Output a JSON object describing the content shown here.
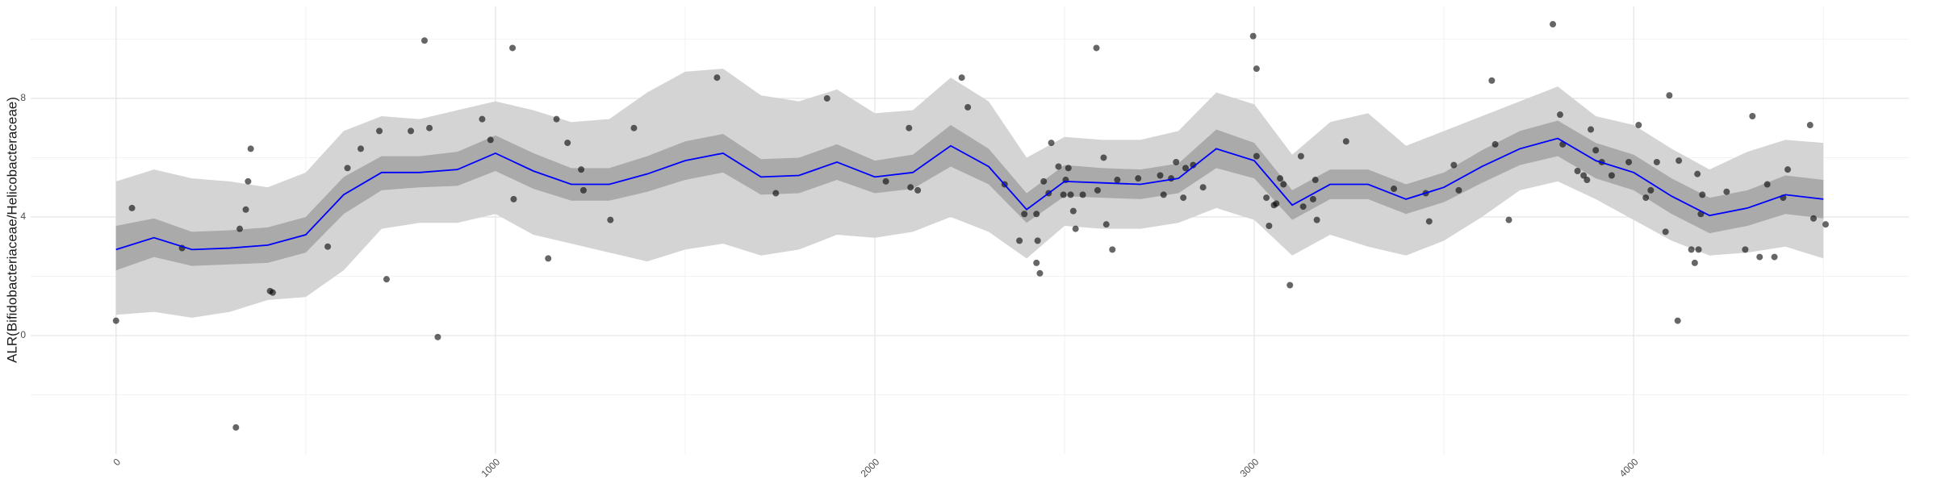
{
  "chart_data": {
    "type": "scatter",
    "y_label": "ALR(Bifidobacteriaceae/Helicobacteraceae)",
    "xlim": [
      -225,
      4725
    ],
    "ylim": [
      -4,
      11.1
    ],
    "xticks": [
      0,
      1000,
      2000,
      3000,
      4000
    ],
    "yticks": [
      0,
      4,
      8
    ],
    "minor_xticks": [
      500,
      1500,
      2500,
      3500,
      4500
    ],
    "minor_yticks": [
      -2,
      2,
      6,
      10
    ],
    "grid": true,
    "points": {
      "color": "#000000",
      "x": [
        0,
        42,
        174,
        326,
        342,
        348,
        355,
        406,
        413,
        316,
        558,
        610,
        645,
        694,
        713,
        777,
        813,
        826,
        848,
        965,
        987,
        1045,
        1048,
        1139,
        1161,
        1190,
        1226,
        1232,
        1303,
        1365,
        1584,
        1739,
        1874,
        2029,
        2090,
        2094,
        2113,
        2229,
        2245,
        2342,
        2381,
        2394,
        2426,
        2426,
        2435,
        2429,
        2445,
        2458,
        2465,
        2484,
        2497,
        2503,
        2510,
        2516,
        2523,
        2529,
        2548,
        2584,
        2587,
        2603,
        2610,
        2626,
        2639,
        2694,
        2752,
        2761,
        2781,
        2794,
        2813,
        2819,
        2839,
        2865,
        2997,
        3006,
        3006,
        3032,
        3039,
        3052,
        3058,
        3068,
        3077,
        3094,
        3123,
        3129,
        3155,
        3161,
        3165,
        3242,
        3368,
        3452,
        3461,
        3526,
        3539,
        3626,
        3635,
        3671,
        3787,
        3806,
        3813,
        3852,
        3868,
        3877,
        3887,
        3900,
        3916,
        3942,
        3987,
        4013,
        4032,
        4045,
        4061,
        4084,
        4094,
        4116,
        4119,
        4152,
        4161,
        4168,
        4171,
        4177,
        4181,
        4245,
        4294,
        4313,
        4332,
        4352,
        4371,
        4394,
        4406,
        4465,
        4474,
        4506
      ],
      "y": [
        0.5,
        4.3,
        2.95,
        3.6,
        4.25,
        5.2,
        6.3,
        1.5,
        1.45,
        -3.1,
        3.0,
        5.65,
        6.3,
        6.9,
        1.9,
        6.9,
        9.95,
        7.0,
        -0.05,
        7.3,
        6.6,
        9.7,
        4.6,
        2.6,
        7.3,
        6.5,
        5.6,
        4.9,
        3.9,
        7.0,
        8.7,
        4.8,
        8.0,
        5.2,
        7.0,
        5.0,
        4.9,
        8.7,
        7.7,
        5.1,
        3.2,
        4.1,
        4.1,
        2.45,
        2.1,
        3.2,
        5.2,
        4.8,
        6.5,
        5.7,
        4.75,
        5.25,
        5.65,
        4.75,
        4.2,
        3.6,
        4.75,
        9.7,
        4.9,
        6.0,
        3.75,
        2.9,
        5.25,
        5.3,
        5.4,
        4.75,
        5.3,
        5.85,
        4.65,
        5.65,
        5.75,
        5.0,
        10.1,
        9.0,
        6.05,
        4.65,
        3.7,
        4.4,
        4.45,
        5.3,
        5.1,
        1.7,
        6.05,
        4.35,
        4.6,
        5.25,
        3.9,
        6.55,
        4.95,
        4.8,
        3.85,
        5.75,
        4.9,
        8.6,
        6.45,
        3.9,
        10.5,
        7.45,
        6.45,
        5.55,
        5.4,
        5.25,
        6.95,
        6.25,
        5.85,
        5.4,
        5.85,
        7.1,
        4.65,
        4.9,
        5.85,
        3.5,
        8.1,
        0.5,
        5.9,
        2.9,
        2.45,
        5.45,
        2.9,
        4.1,
        4.75,
        4.85,
        2.9,
        7.4,
        2.65,
        5.1,
        2.65,
        4.65,
        5.6,
        7.1,
        3.95,
        3.75
      ]
    },
    "fit": {
      "color": "#0000ff",
      "x": [
        0,
        100,
        200,
        300,
        400,
        500,
        600,
        700,
        800,
        900,
        1000,
        1100,
        1200,
        1300,
        1400,
        1500,
        1600,
        1700,
        1800,
        1900,
        2000,
        2100,
        2200,
        2300,
        2400,
        2500,
        2600,
        2700,
        2800,
        2900,
        3000,
        3100,
        3200,
        3300,
        3400,
        3500,
        3600,
        3700,
        3800,
        3900,
        4000,
        4100,
        4200,
        4300,
        4400,
        4500
      ],
      "values": [
        2.9,
        3.3,
        2.9,
        2.95,
        3.05,
        3.4,
        4.75,
        5.5,
        5.5,
        5.6,
        6.15,
        5.55,
        5.1,
        5.1,
        5.45,
        5.9,
        6.15,
        5.35,
        5.4,
        5.85,
        5.35,
        5.5,
        6.4,
        5.7,
        4.25,
        5.2,
        5.15,
        5.1,
        5.3,
        6.3,
        5.9,
        4.4,
        5.1,
        5.1,
        4.6,
        5.0,
        5.7,
        6.3,
        6.65,
        5.9,
        5.5,
        4.7,
        4.05,
        4.3,
        4.75,
        4.6
      ]
    },
    "bands": [
      {
        "color": "#d4d4d4",
        "lower": [
          0.7,
          0.8,
          0.6,
          0.8,
          1.2,
          1.3,
          2.2,
          3.6,
          3.8,
          3.8,
          4.1,
          3.4,
          3.1,
          2.8,
          2.5,
          2.9,
          3.1,
          2.7,
          2.9,
          3.4,
          3.3,
          3.5,
          4.0,
          3.5,
          2.6,
          3.7,
          3.6,
          3.6,
          3.8,
          4.3,
          3.9,
          2.7,
          3.4,
          3.0,
          2.7,
          3.2,
          4.0,
          4.9,
          5.2,
          4.6,
          3.9,
          3.2,
          2.7,
          2.8,
          3.0,
          2.6
        ],
        "upper": [
          5.2,
          5.6,
          5.3,
          5.2,
          5.0,
          5.5,
          6.9,
          7.4,
          7.3,
          7.6,
          7.9,
          7.6,
          7.2,
          7.3,
          8.2,
          8.9,
          9.0,
          8.1,
          7.9,
          8.3,
          7.5,
          7.6,
          8.7,
          7.9,
          6.0,
          6.7,
          6.6,
          6.6,
          6.9,
          8.2,
          7.8,
          6.1,
          7.2,
          7.5,
          6.4,
          6.9,
          7.4,
          7.9,
          8.4,
          7.4,
          7.1,
          6.3,
          5.6,
          6.2,
          6.6,
          6.5
        ]
      },
      {
        "color": "#aaaaaa",
        "lower": [
          2.2,
          2.65,
          2.35,
          2.4,
          2.45,
          2.8,
          4.1,
          4.9,
          5.0,
          5.05,
          5.55,
          4.95,
          4.55,
          4.55,
          4.85,
          5.25,
          5.5,
          4.75,
          4.8,
          5.25,
          4.8,
          4.95,
          5.7,
          5.1,
          3.8,
          4.7,
          4.65,
          4.6,
          4.8,
          5.65,
          5.3,
          3.9,
          4.6,
          4.6,
          4.1,
          4.5,
          5.15,
          5.75,
          6.05,
          5.3,
          4.9,
          4.1,
          3.45,
          3.7,
          4.1,
          3.95
        ],
        "upper": [
          3.7,
          3.95,
          3.5,
          3.55,
          3.65,
          4.0,
          5.35,
          6.05,
          6.05,
          6.2,
          6.75,
          6.15,
          5.65,
          5.65,
          6.05,
          6.55,
          6.8,
          5.95,
          6.0,
          6.45,
          5.9,
          6.1,
          7.1,
          6.3,
          4.8,
          5.75,
          5.65,
          5.6,
          5.8,
          6.95,
          6.5,
          4.9,
          5.6,
          5.6,
          5.1,
          5.5,
          6.25,
          6.9,
          7.25,
          6.5,
          6.1,
          5.3,
          4.65,
          4.9,
          5.4,
          5.25
        ]
      }
    ]
  }
}
